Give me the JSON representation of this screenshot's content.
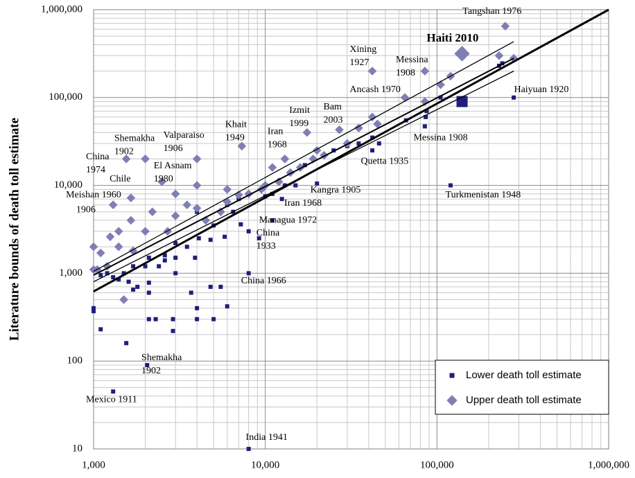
{
  "chart_data": {
    "type": "scatter",
    "y_label": "Literature bounds of death toll estimate",
    "log_x": true,
    "log_y": true,
    "grid": true,
    "minor_grid": true,
    "legend": "lower right",
    "highlight_last": true,
    "xlim": [
      1000,
      1000000
    ],
    "ylim": [
      10,
      1000000
    ],
    "xticks": [
      {
        "value": 1000,
        "label": "1,000"
      },
      {
        "value": 10000,
        "label": "10,000"
      },
      {
        "value": 100000,
        "label": "100,000"
      },
      {
        "value": 1000000,
        "label": "1,000,000"
      }
    ],
    "yticks": [
      10,
      100,
      {
        "value": 1000,
        "label": "1,000"
      },
      {
        "value": 10000,
        "label": "10,000"
      },
      {
        "value": 100000,
        "label": "100,000"
      },
      {
        "value": 1000000,
        "label": "1,000,000"
      }
    ],
    "series": [
      {
        "name": "Lower death toll estimate",
        "color": "#1f1f7a",
        "marker": "square",
        "x": [
          1000,
          1000,
          1100,
          1300,
          1550,
          2050,
          2100,
          2300,
          2900,
          2900,
          4000,
          5000,
          6000,
          5500,
          4800,
          4000,
          3700,
          3000,
          2100,
          2100,
          1800,
          1700,
          1600,
          1500,
          1400,
          1300,
          1200,
          1100,
          1700,
          2000,
          2100,
          2400,
          2600,
          2600,
          3000,
          3000,
          3500,
          3900,
          4100,
          4800,
          5800,
          7200,
          8000,
          8000,
          9200,
          8000,
          11000,
          12500,
          13000,
          15000,
          17000,
          20000,
          25000,
          30000,
          35000,
          42000,
          46000,
          42000,
          66000,
          85000,
          86000,
          87000,
          105000,
          120000,
          280000,
          230000,
          240000,
          6000,
          7000,
          10000,
          11000,
          5000,
          4000,
          6500,
          140000
        ],
        "values": [
          400,
          370,
          230,
          45,
          160,
          90,
          300,
          300,
          300,
          220,
          300,
          300,
          420,
          700,
          700,
          400,
          600,
          1000,
          780,
          600,
          700,
          650,
          800,
          1000,
          850,
          900,
          1000,
          950,
          1200,
          1200,
          1500,
          1200,
          1400,
          1600,
          1500,
          2200,
          2000,
          1500,
          2500,
          2400,
          2600,
          3600,
          3000,
          1000,
          2500,
          10,
          4000,
          7000,
          10000,
          10000,
          17000,
          10500,
          25000,
          28000,
          30000,
          25000,
          30000,
          35000,
          55000,
          47000,
          60000,
          70000,
          100000,
          10000,
          100000,
          230000,
          245000,
          6000,
          7000,
          7500,
          8000,
          3500,
          5000,
          5000,
          90000
        ]
      },
      {
        "name": "Upper death toll estimate",
        "color": "#7f7fb5",
        "marker": "diamond",
        "x": [
          1000,
          1000,
          1050,
          1100,
          1200,
          1250,
          1300,
          1400,
          1400,
          1500,
          1550,
          1650,
          1650,
          1700,
          2000,
          2000,
          2200,
          2500,
          2700,
          3000,
          3000,
          3500,
          4000,
          4000,
          4000,
          4500,
          5500,
          6000,
          6000,
          7300,
          7000,
          8000,
          9500,
          10000,
          11000,
          12000,
          13000,
          14000,
          16000,
          17500,
          19000,
          20000,
          22000,
          27000,
          30000,
          35000,
          42000,
          45000,
          42000,
          65000,
          85000,
          85000,
          105000,
          120000,
          230000,
          250000,
          280000,
          140000
        ],
        "values": [
          2000,
          1100,
          1100,
          1700,
          1200,
          2600,
          6000,
          3000,
          2000,
          500,
          20000,
          7200,
          4000,
          1800,
          20000,
          3000,
          5000,
          11000,
          3000,
          8000,
          4500,
          6000,
          20000,
          10000,
          5500,
          4000,
          5000,
          9000,
          6500,
          28000,
          7800,
          8000,
          9000,
          10000,
          16000,
          11000,
          20000,
          14000,
          16000,
          40000,
          20000,
          25000,
          22000,
          43000,
          30000,
          45000,
          200000,
          50000,
          60000,
          100000,
          200000,
          90000,
          140000,
          175000,
          300000,
          650000,
          280000,
          316000
        ]
      }
    ],
    "lines": [
      {
        "x": [
          1000,
          280000
        ],
        "y": [
          1050,
          433000
        ],
        "color": "#000000",
        "line_width": 1.3
      },
      {
        "x": [
          1000,
          1000000
        ],
        "y": [
          620,
          1000000
        ],
        "color": "#000000",
        "line_width": 3
      },
      {
        "x": [
          1000,
          280000
        ],
        "y": [
          950,
          280000
        ],
        "color": "#000000",
        "line_width": 2
      },
      {
        "x": [
          1000,
          280000
        ],
        "y": [
          800,
          200000
        ],
        "color": "#000000",
        "line_width": 1.3
      }
    ],
    "annotations": [
      {
        "lines": [
          "Tangshan 1976"
        ],
        "x": 141000,
        "y": 947000
      },
      {
        "lines": [
          "Haiti 2010"
        ],
        "x": 87000,
        "y": 466000,
        "bold": true
      },
      {
        "lines": [
          "Xining",
          "1927"
        ],
        "x": 31000,
        "y": 349000
      },
      {
        "lines": [
          "Messina",
          "1908"
        ],
        "x": 57600,
        "y": 266000
      },
      {
        "lines": [
          "Ancash 1970"
        ],
        "x": 31000,
        "y": 122000
      },
      {
        "lines": [
          "Haiyuan 1920"
        ],
        "x": 281000,
        "y": 122000
      },
      {
        "lines": [
          "Izmit",
          "1999"
        ],
        "x": 13800,
        "y": 70600
      },
      {
        "lines": [
          "Bam",
          "2003"
        ],
        "x": 21800,
        "y": 77300
      },
      {
        "lines": [
          "Khait",
          "1949"
        ],
        "x": 5840,
        "y": 49000
      },
      {
        "lines": [
          "Iran",
          "1968"
        ],
        "x": 10300,
        "y": 40900
      },
      {
        "lines": [
          "Shemakha",
          "1902"
        ],
        "x": 1320,
        "y": 34100
      },
      {
        "lines": [
          "Valparaiso",
          "1906"
        ],
        "x": 2550,
        "y": 36700
      },
      {
        "lines": [
          "Messina 1908"
        ],
        "x": 73000,
        "y": 34700
      },
      {
        "lines": [
          "China",
          "1974"
        ],
        "x": 903,
        "y": 20900
      },
      {
        "lines": [
          "El Asnam",
          "1980"
        ],
        "x": 2240,
        "y": 16500
      },
      {
        "lines": [
          "Quetta 1935"
        ],
        "x": 36000,
        "y": 18700
      },
      {
        "lines": [
          "Chile"
        ],
        "x": 1240,
        "y": 11700
      },
      {
        "lines": [
          "Meishan 1960"
        ],
        "x": 690,
        "y": 7700
      },
      {
        "lines": [
          "1906"
        ],
        "x": 792,
        "y": 5250
      },
      {
        "lines": [
          "Kangra 1905"
        ],
        "x": 18300,
        "y": 8750
      },
      {
        "lines": [
          "Turkmenistan 1948"
        ],
        "x": 112000,
        "y": 7700
      },
      {
        "lines": [
          "Iran 1968"
        ],
        "x": 12900,
        "y": 6200
      },
      {
        "lines": [
          "Managua 1972"
        ],
        "x": 9200,
        "y": 4000
      },
      {
        "lines": [
          "China",
          "1933"
        ],
        "x": 8870,
        "y": 2840
      },
      {
        "lines": [
          "China 1966"
        ],
        "x": 7230,
        "y": 811
      },
      {
        "lines": [
          "Shemakha",
          "1902"
        ],
        "x": 1900,
        "y": 108
      },
      {
        "lines": [
          "Mexico 1911"
        ],
        "x": 903,
        "y": 36
      },
      {
        "lines": [
          "India 1941"
        ],
        "x": 7700,
        "y": 13.4
      }
    ]
  }
}
